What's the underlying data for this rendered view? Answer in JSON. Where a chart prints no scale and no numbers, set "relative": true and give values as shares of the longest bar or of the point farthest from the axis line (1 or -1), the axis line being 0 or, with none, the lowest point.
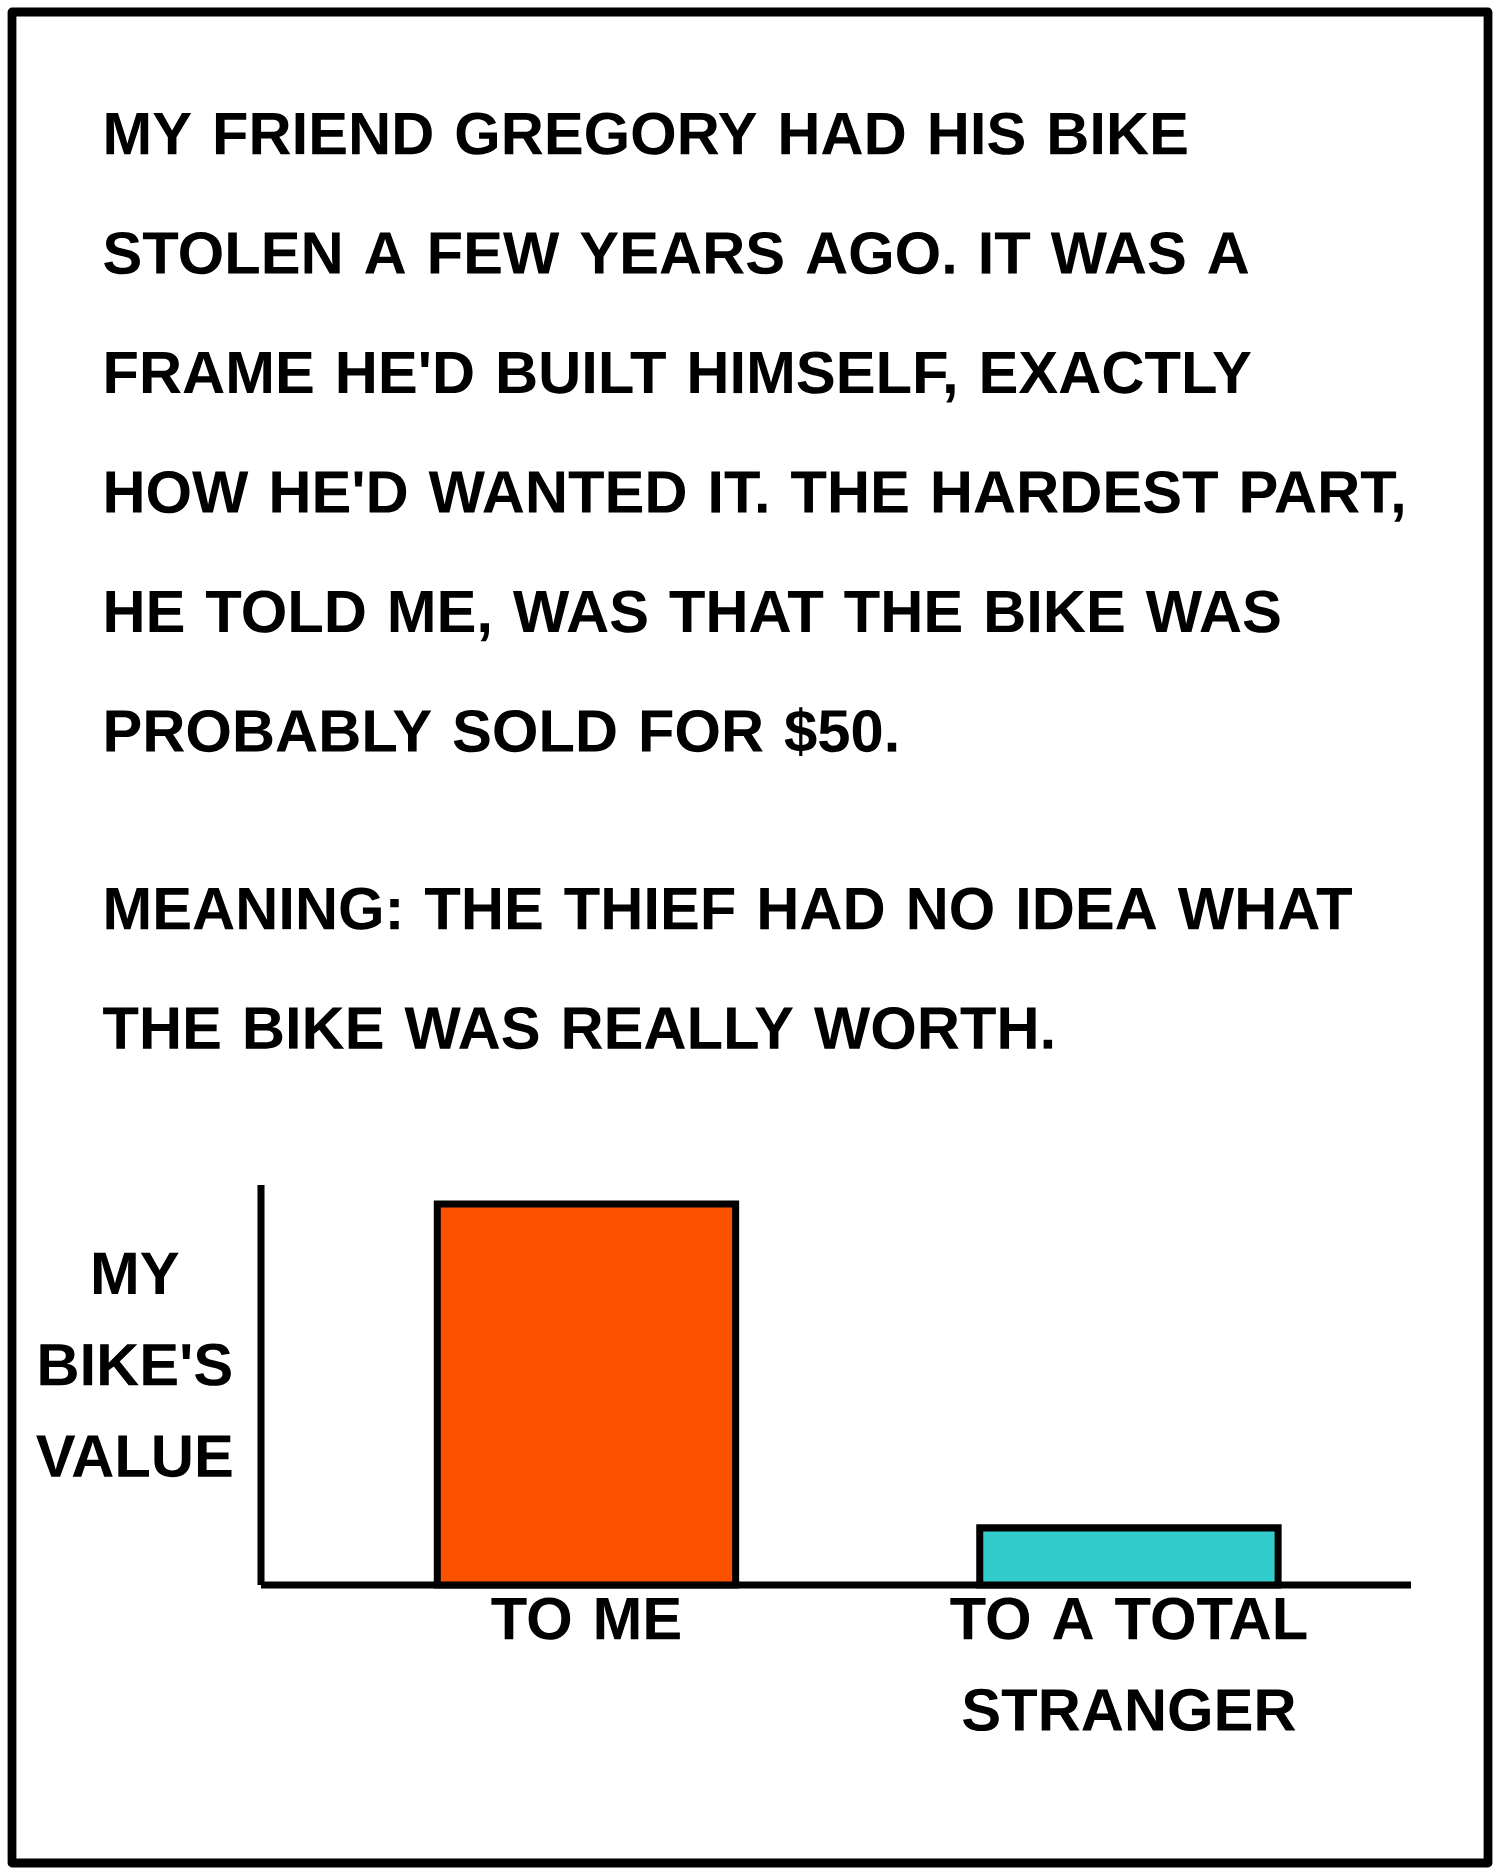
{
  "chart_data": {
    "type": "bar",
    "relative": true,
    "title": "MY FRIEND GREGORY HAD HIS BIKE STOLEN A FEW YEARS AGO. IT WAS A FRAME HE'D BUILT HIMSELF, EXACTLY HOW HE'D WANTED IT. THE HARDEST PART, HE TOLD ME, WAS THAT THE BIKE WAS PROBABLY SOLD FOR $50.",
    "subtitle": "MEANING: THE THIEF HAD NO IDEA WHAT THE BIKE WAS REALLY WORTH.",
    "ylabel": "MY BIKE'S VALUE",
    "categories": [
      "TO ME",
      "TO A TOTAL STRANGER"
    ],
    "values": [
      1,
      0.15
    ],
    "colors": [
      "#fc5200",
      "#33cccc"
    ]
  }
}
